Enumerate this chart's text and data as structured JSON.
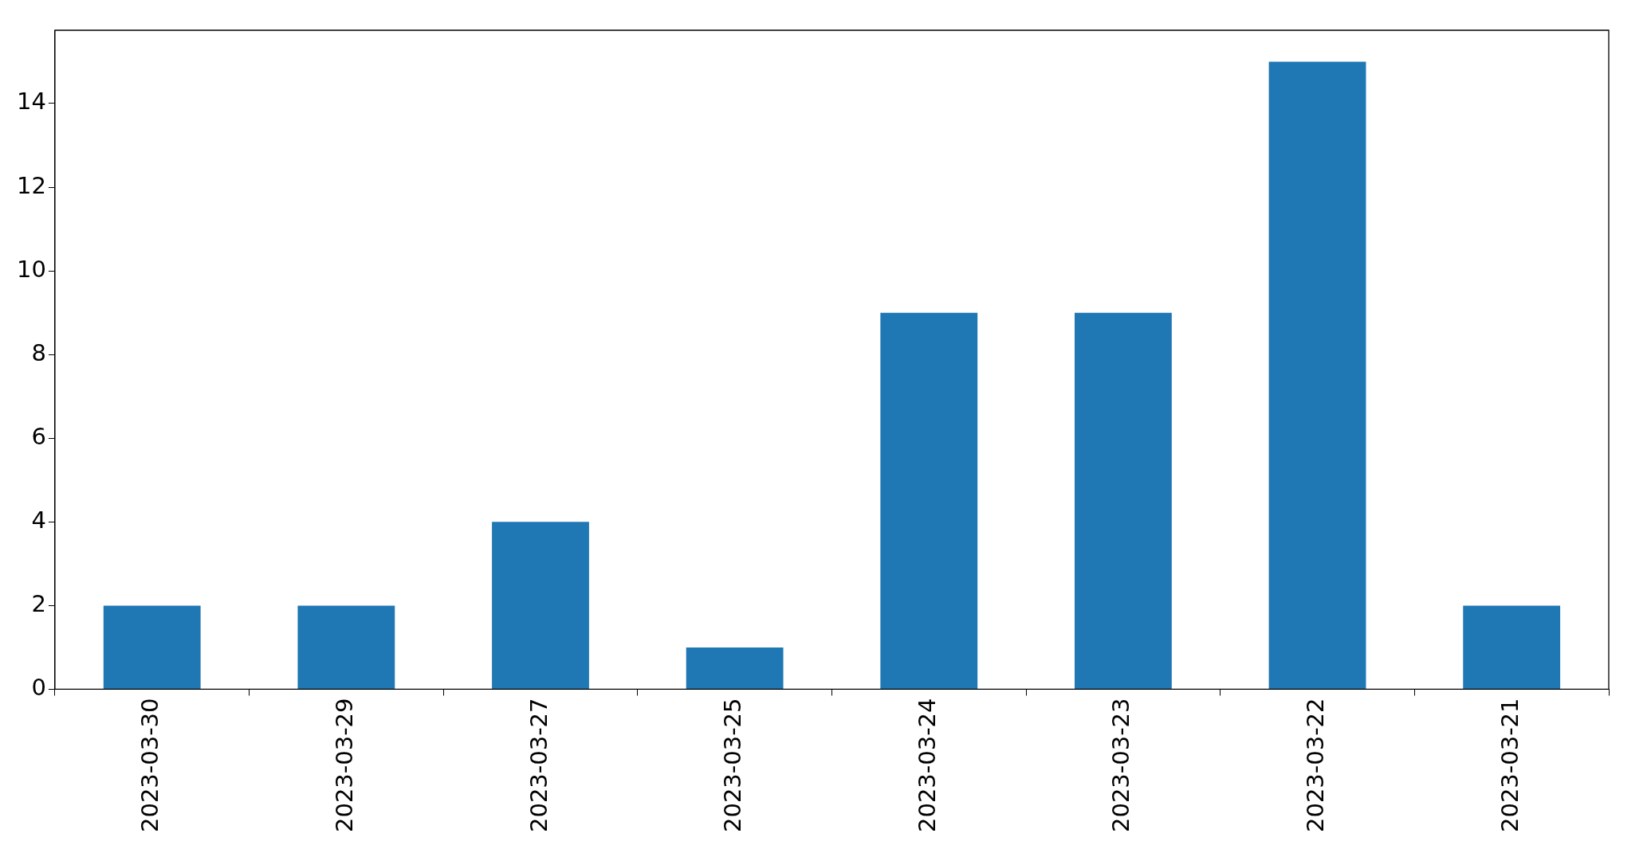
{
  "chart_data": {
    "type": "bar",
    "categories": [
      "2023-03-30",
      "2023-03-29",
      "2023-03-27",
      "2023-03-25",
      "2023-03-24",
      "2023-03-23",
      "2023-03-22",
      "2023-03-21"
    ],
    "values": [
      2,
      2,
      4,
      1,
      9,
      9,
      15,
      2
    ],
    "color": "#1f77b4",
    "ylim": [
      0,
      15.75
    ],
    "yticks": [
      0,
      2,
      4,
      6,
      8,
      10,
      12,
      14
    ],
    "grid": false,
    "legend": false
  }
}
